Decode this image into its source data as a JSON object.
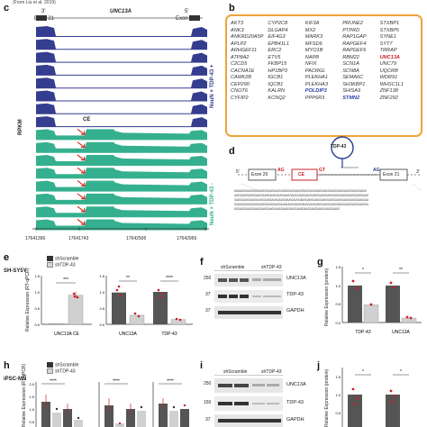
{
  "panel_c": {
    "label": "c",
    "citation": "(From Liu et al. 2019)",
    "exon_left": "Exon 21",
    "exon_right": "Exon 20",
    "gene": "UNC13A",
    "strand_left": "3'",
    "strand_right": "5'",
    "ce_label": "CE",
    "y_label": "RPKM",
    "group_plus": "NeuN + TDP-43 +",
    "group_minus": "NeuN + TDP-43 -",
    "coords": [
      "17641396",
      "17641743",
      "17642506",
      "17642956"
    ],
    "colors": {
      "plus": "#353d8f",
      "minus": "#35b08f",
      "arrow": "#d8281e"
    }
  },
  "panel_b": {
    "label": "b",
    "genes": [
      [
        "AKT3",
        "CYP2C8",
        "KIF3A",
        "PRUNE2",
        "STXBP1"
      ],
      [
        "ANK3",
        "DLGAP4",
        "MX2",
        "PTPRD",
        "STXBP5"
      ],
      [
        "ANKRD20A5P",
        "EIF4G3",
        "MARK3",
        "RAP1GAP",
        "SYNE1"
      ],
      [
        "APLP2",
        "EPB41L1",
        "MFSD6",
        "RAPGEF4",
        "SYT7"
      ],
      [
        "ARHGEF11",
        "ERC2",
        "MYO1B",
        "RAPGEF6",
        "TRRAP"
      ],
      [
        "ATP8A2",
        "ETV5",
        "NAPB",
        "RBM22",
        "UNC13A"
      ],
      [
        "C2CD5",
        "FKBP15",
        "NFIX",
        "SCN1A",
        "UNC79"
      ],
      [
        "CACNA1E",
        "HP1BP3",
        "PACRGL",
        "SCN8A",
        "UQCRB"
      ],
      [
        "CAMK2B",
        "IGCB1",
        "PLEKHA1",
        "SEMA6C",
        "WDR91"
      ],
      [
        "CEP290",
        "IQCB1",
        "PLEKHA3",
        "SH3KBP1",
        "WHSC1L1"
      ],
      [
        "CNOT6",
        "KALRN",
        "POLDIP3",
        "SHISA9",
        "ZNF138"
      ],
      [
        "CYFIP2",
        "KCNQ2",
        "PPP6R3",
        "STMN2",
        "ZNF292"
      ]
    ],
    "highlight_blue": [
      "POLDIP3",
      "STMN2"
    ],
    "highlight_red": [
      "UNC13A"
    ]
  },
  "panel_d": {
    "label": "d",
    "tdp_label": "TDP-43",
    "exon20": "Exon 20",
    "exon21": "Exon 21",
    "ce_label": "CE",
    "prime5": "5'",
    "prime3": "3'",
    "splice_ag": "AG",
    "splice_gt": "GT",
    "sequence_lines": [
      "AUAAUGGAUGUUGGAUGGGAUGGAUGGUGGGUGGAUGGGUGGGUGGAUGGAUGGAUGGAUGGAUGGAUGGAUGG",
      "AUGGAUGGAUGGAUGGAUGGAUGGAUGGAUGGAUGGAUGGAUGGAUGGAUGGAUGGAUGGAUGGAUGGAUGGAUG",
      "GAUGGAUGGAUGGAUGGAUGGAUGGAUGGAUGGAUGGAUGGAUGGAUGGAUGGAUGGAUGGAUGGAUGGAUGGAU",
      "GGAUGGAUGGAUGGAUGGAUGGAUGGAUGGAUGGAUGGAUGGAUGGAUGGAUGGAUGGAUGGAUGGAUGGAUGGA",
      "UGGAUGGAUGGAUGGAUGGAUGGAUGGAUGGAUGGAUGGAUGGAUGGAUGGAUGGAUGG"
    ]
  },
  "panel_e": {
    "label": "e",
    "cell_line": "SH-SY5Y",
    "legend": [
      "shScramble",
      "shTDP-43"
    ],
    "y_label": "Relative Expression (RT-qPCR)",
    "left": {
      "categories": [
        "UNC13A CE"
      ],
      "scramble": [
        0.0
      ],
      "shtdp": [
        0.9
      ],
      "ylim": [
        0,
        1.5
      ],
      "ticks": [
        "0.0",
        "0.5",
        "1.0",
        "1.5"
      ],
      "sig": "***"
    },
    "right": {
      "categories": [
        "UNC13A",
        "TDP-43"
      ],
      "scramble": [
        0.98,
        1.0
      ],
      "shtdp": [
        0.28,
        0.15
      ],
      "ylim": [
        0,
        1.5
      ],
      "ticks": [
        "0.0",
        "0.5",
        "1.0",
        "1.5"
      ],
      "sig": [
        "**",
        "****"
      ]
    }
  },
  "panel_f": {
    "label": "f",
    "groups": [
      "shScramble",
      "shTDP-43"
    ],
    "bands": [
      "UNC13A",
      "TDP-43",
      "GAPDH"
    ],
    "mw": [
      "250",
      "37",
      "37"
    ]
  },
  "panel_g": {
    "label": "g",
    "y_label": "Relative Expression (protein)",
    "categories": [
      "TDP-43",
      "UNC13A"
    ],
    "scramble": [
      1.0,
      1.0
    ],
    "shtdp": [
      0.48,
      0.12
    ],
    "ticks": [
      "0.0",
      "0.5",
      "1.0",
      "1.5"
    ],
    "sig": [
      "*",
      "**"
    ]
  },
  "panel_h": {
    "label": "h",
    "cell_line": "iPSC-MN",
    "legend": [
      "shScramble",
      "shTDP-43"
    ],
    "y_label": "Relative Expression (RT-qPCR)",
    "ticks": [
      "0.0",
      "0.5",
      "1.0",
      "1.5",
      "2.0"
    ],
    "sig": [
      "****",
      "****",
      "****"
    ]
  },
  "panel_i": {
    "label": "i",
    "groups": [
      "shScramble",
      "shTDP-43"
    ],
    "bands": [
      "UNC13A",
      "TDP-43",
      "GAPDH"
    ],
    "mw": [
      "250",
      "150",
      "37"
    ]
  },
  "panel_j": {
    "label": "j",
    "y_label": "Relative Expression (protein)",
    "ticks": [
      "0.0",
      "0.5",
      "1.0",
      "1.5"
    ],
    "sig": [
      "*",
      "*"
    ]
  }
}
